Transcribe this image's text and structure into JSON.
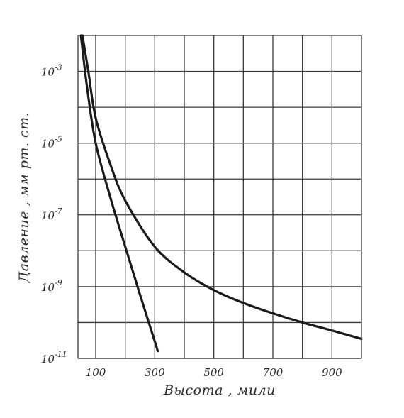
{
  "chart_data": {
    "type": "line",
    "title": "",
    "xlabel": "Высота , мили",
    "ylabel": "Давление , мм рт. ст.",
    "y_scale": "log",
    "grid": true,
    "xlim": [
      40,
      1000
    ],
    "ylim": [
      1e-11,
      0.01
    ],
    "x_ticks": [
      {
        "value": 100,
        "label": "100"
      },
      {
        "value": 300,
        "label": "300"
      },
      {
        "value": 500,
        "label": "500"
      },
      {
        "value": 700,
        "label": "700"
      },
      {
        "value": 900,
        "label": "900"
      }
    ],
    "y_ticks": [
      {
        "value": 0.001,
        "base": "10",
        "exp": "-3"
      },
      {
        "value": 1e-05,
        "base": "10",
        "exp": "-5"
      },
      {
        "value": 1e-07,
        "base": "10",
        "exp": "-7"
      },
      {
        "value": 1e-09,
        "base": "10",
        "exp": "-9"
      },
      {
        "value": 1e-11,
        "base": "10",
        "exp": "-11"
      }
    ],
    "series": [
      {
        "color": "#1a1a1a",
        "x": [
          50,
          70,
          100,
          150,
          200,
          250,
          300,
          310
        ],
        "y": [
          0.01,
          0.0004,
          1e-05,
          3e-07,
          1.3e-08,
          6e-10,
          3e-11,
          1.6e-11
        ]
      },
      {
        "color": "#1a1a1a",
        "x": [
          55,
          75,
          100,
          150,
          200,
          300,
          400,
          500,
          600,
          700,
          800,
          900,
          1000
        ],
        "y": [
          0.01,
          0.001,
          5e-05,
          2.5e-06,
          2.5e-07,
          1.3e-08,
          2.5e-09,
          8e-10,
          3.5e-10,
          1.8e-10,
          1e-10,
          6e-11,
          3.5e-11
        ]
      }
    ]
  }
}
